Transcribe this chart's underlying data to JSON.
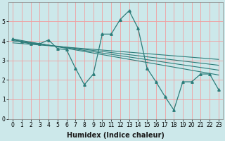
{
  "title": "",
  "xlabel": "Humidex (Indice chaleur)",
  "background_color": "#cce8ea",
  "line_color": "#2d7d7a",
  "grid_color": "#f0a0a0",
  "xlim": [
    -0.5,
    23.5
  ],
  "ylim": [
    0,
    6.0
  ],
  "yticks": [
    0,
    1,
    2,
    3,
    4,
    5
  ],
  "xticks": [
    0,
    1,
    2,
    3,
    4,
    5,
    6,
    7,
    8,
    9,
    10,
    11,
    12,
    13,
    14,
    15,
    16,
    17,
    18,
    19,
    20,
    21,
    22,
    23
  ],
  "curve1_x": [
    0,
    1,
    2,
    3,
    4,
    5,
    6,
    7,
    8,
    9,
    10,
    11,
    12,
    13,
    14,
    15,
    16,
    17,
    18,
    19,
    20,
    21,
    22,
    23
  ],
  "curve1_y": [
    4.1,
    3.95,
    3.85,
    3.85,
    4.05,
    3.6,
    3.55,
    2.6,
    1.75,
    2.3,
    4.35,
    4.35,
    5.1,
    5.55,
    4.65,
    2.6,
    1.9,
    1.15,
    0.45,
    1.9,
    1.9,
    2.3,
    2.3,
    1.5
  ],
  "line1_x": [
    0,
    23
  ],
  "line1_y": [
    4.1,
    2.25
  ],
  "line2_x": [
    0,
    23
  ],
  "line2_y": [
    4.05,
    2.5
  ],
  "line3_x": [
    0,
    23
  ],
  "line3_y": [
    4.0,
    2.75
  ],
  "line4_x": [
    0,
    23
  ],
  "line4_y": [
    3.9,
    3.05
  ],
  "tick_fontsize": 5.5,
  "xlabel_fontsize": 7
}
